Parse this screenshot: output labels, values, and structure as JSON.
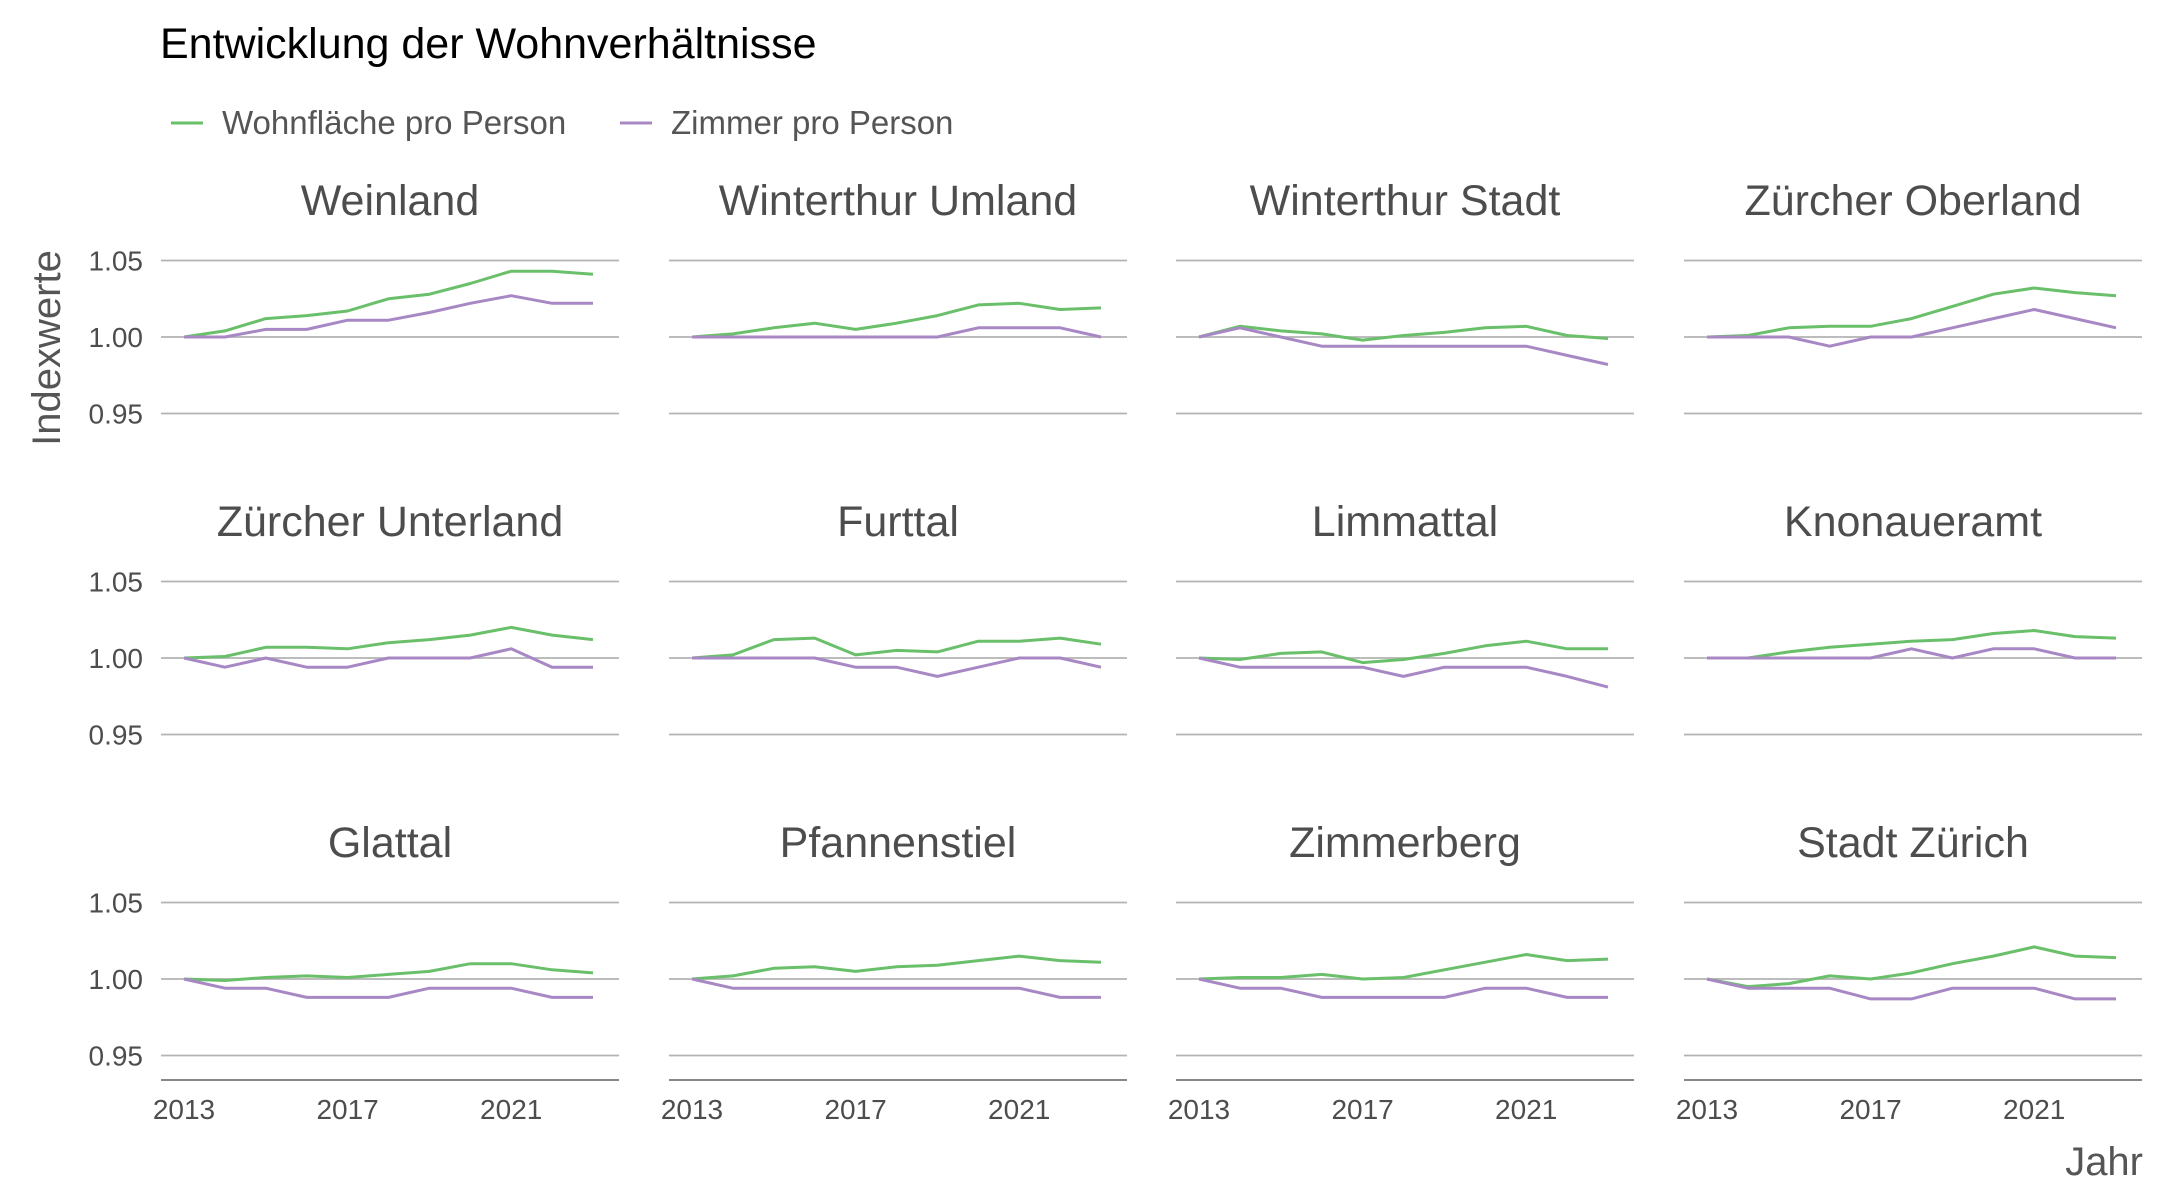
{
  "chart_data": {
    "type": "line",
    "title": "Entwicklung der Wohnverhältnisse",
    "xlabel": "Jahr",
    "ylabel": "Indexwerte",
    "legend_position": "top-left",
    "grid": true,
    "ylim": [
      0.935,
      1.065
    ],
    "yticks": [
      0.95,
      1.0,
      1.05
    ],
    "ytick_labels": [
      "0.95",
      "1.00",
      "1.05"
    ],
    "xticks": [
      2013,
      2017,
      2021
    ],
    "xtick_labels": [
      "2013",
      "2017",
      "2021"
    ],
    "x": [
      2013,
      2014,
      2015,
      2016,
      2017,
      2018,
      2019,
      2020,
      2021,
      2022,
      2023
    ],
    "series_meta": [
      {
        "name": "Wohnfläche pro Person",
        "color": "#6abf6a"
      },
      {
        "name": "Zimmer pro Person",
        "color": "#a888c4"
      }
    ],
    "panels": [
      {
        "title": "Weinland",
        "series": [
          [
            1.0,
            1.004,
            1.012,
            1.014,
            1.017,
            1.025,
            1.028,
            1.035,
            1.043,
            1.043,
            1.041
          ],
          [
            1.0,
            1.0,
            1.005,
            1.005,
            1.011,
            1.011,
            1.016,
            1.022,
            1.027,
            1.022,
            1.022
          ]
        ]
      },
      {
        "title": "Winterthur Umland",
        "series": [
          [
            1.0,
            1.002,
            1.006,
            1.009,
            1.005,
            1.009,
            1.014,
            1.021,
            1.022,
            1.018,
            1.019
          ],
          [
            1.0,
            1.0,
            1.0,
            1.0,
            1.0,
            1.0,
            1.0,
            1.006,
            1.006,
            1.006,
            1.0
          ]
        ]
      },
      {
        "title": "Winterthur Stadt",
        "series": [
          [
            1.0,
            1.007,
            1.004,
            1.002,
            0.998,
            1.001,
            1.003,
            1.006,
            1.007,
            1.001,
            0.999
          ],
          [
            1.0,
            1.006,
            1.0,
            0.994,
            0.994,
            0.994,
            0.994,
            0.994,
            0.994,
            0.988,
            0.982
          ]
        ]
      },
      {
        "title": "Zürcher Oberland",
        "series": [
          [
            1.0,
            1.001,
            1.006,
            1.007,
            1.007,
            1.012,
            1.02,
            1.028,
            1.032,
            1.029,
            1.027
          ],
          [
            1.0,
            1.0,
            1.0,
            0.994,
            1.0,
            1.0,
            1.006,
            1.012,
            1.018,
            1.012,
            1.006
          ]
        ]
      },
      {
        "title": "Zürcher Unterland",
        "series": [
          [
            1.0,
            1.001,
            1.007,
            1.007,
            1.006,
            1.01,
            1.012,
            1.015,
            1.02,
            1.015,
            1.012
          ],
          [
            1.0,
            0.994,
            1.0,
            0.994,
            0.994,
            1.0,
            1.0,
            1.0,
            1.006,
            0.994,
            0.994
          ]
        ]
      },
      {
        "title": "Furttal",
        "series": [
          [
            1.0,
            1.002,
            1.012,
            1.013,
            1.002,
            1.005,
            1.004,
            1.011,
            1.011,
            1.013,
            1.009
          ],
          [
            1.0,
            1.0,
            1.0,
            1.0,
            0.994,
            0.994,
            0.988,
            0.994,
            1.0,
            1.0,
            0.994
          ]
        ]
      },
      {
        "title": "Limmattal",
        "series": [
          [
            1.0,
            0.999,
            1.003,
            1.004,
            0.997,
            0.999,
            1.003,
            1.008,
            1.011,
            1.006,
            1.006
          ],
          [
            1.0,
            0.994,
            0.994,
            0.994,
            0.994,
            0.988,
            0.994,
            0.994,
            0.994,
            0.988,
            0.981
          ]
        ]
      },
      {
        "title": "Knonaueramt",
        "series": [
          [
            1.0,
            1.0,
            1.004,
            1.007,
            1.009,
            1.011,
            1.012,
            1.016,
            1.018,
            1.014,
            1.013
          ],
          [
            1.0,
            1.0,
            1.0,
            1.0,
            1.0,
            1.006,
            1.0,
            1.006,
            1.006,
            1.0,
            1.0
          ]
        ]
      },
      {
        "title": "Glattal",
        "series": [
          [
            1.0,
            0.999,
            1.001,
            1.002,
            1.001,
            1.003,
            1.005,
            1.01,
            1.01,
            1.006,
            1.004
          ],
          [
            1.0,
            0.994,
            0.994,
            0.988,
            0.988,
            0.988,
            0.994,
            0.994,
            0.994,
            0.988,
            0.988
          ]
        ]
      },
      {
        "title": "Pfannenstiel",
        "series": [
          [
            1.0,
            1.002,
            1.007,
            1.008,
            1.005,
            1.008,
            1.009,
            1.012,
            1.015,
            1.012,
            1.011
          ],
          [
            1.0,
            0.994,
            0.994,
            0.994,
            0.994,
            0.994,
            0.994,
            0.994,
            0.994,
            0.988,
            0.988
          ]
        ]
      },
      {
        "title": "Zimmerberg",
        "series": [
          [
            1.0,
            1.001,
            1.001,
            1.003,
            1.0,
            1.001,
            1.006,
            1.011,
            1.016,
            1.012,
            1.013
          ],
          [
            1.0,
            0.994,
            0.994,
            0.988,
            0.988,
            0.988,
            0.988,
            0.994,
            0.994,
            0.988,
            0.988
          ]
        ]
      },
      {
        "title": "Stadt Zürich",
        "series": [
          [
            1.0,
            0.995,
            0.997,
            1.002,
            1.0,
            1.004,
            1.01,
            1.015,
            1.021,
            1.015,
            1.014
          ],
          [
            1.0,
            0.994,
            0.994,
            0.994,
            0.987,
            0.987,
            0.994,
            0.994,
            0.994,
            0.987,
            0.987
          ]
        ]
      }
    ]
  }
}
